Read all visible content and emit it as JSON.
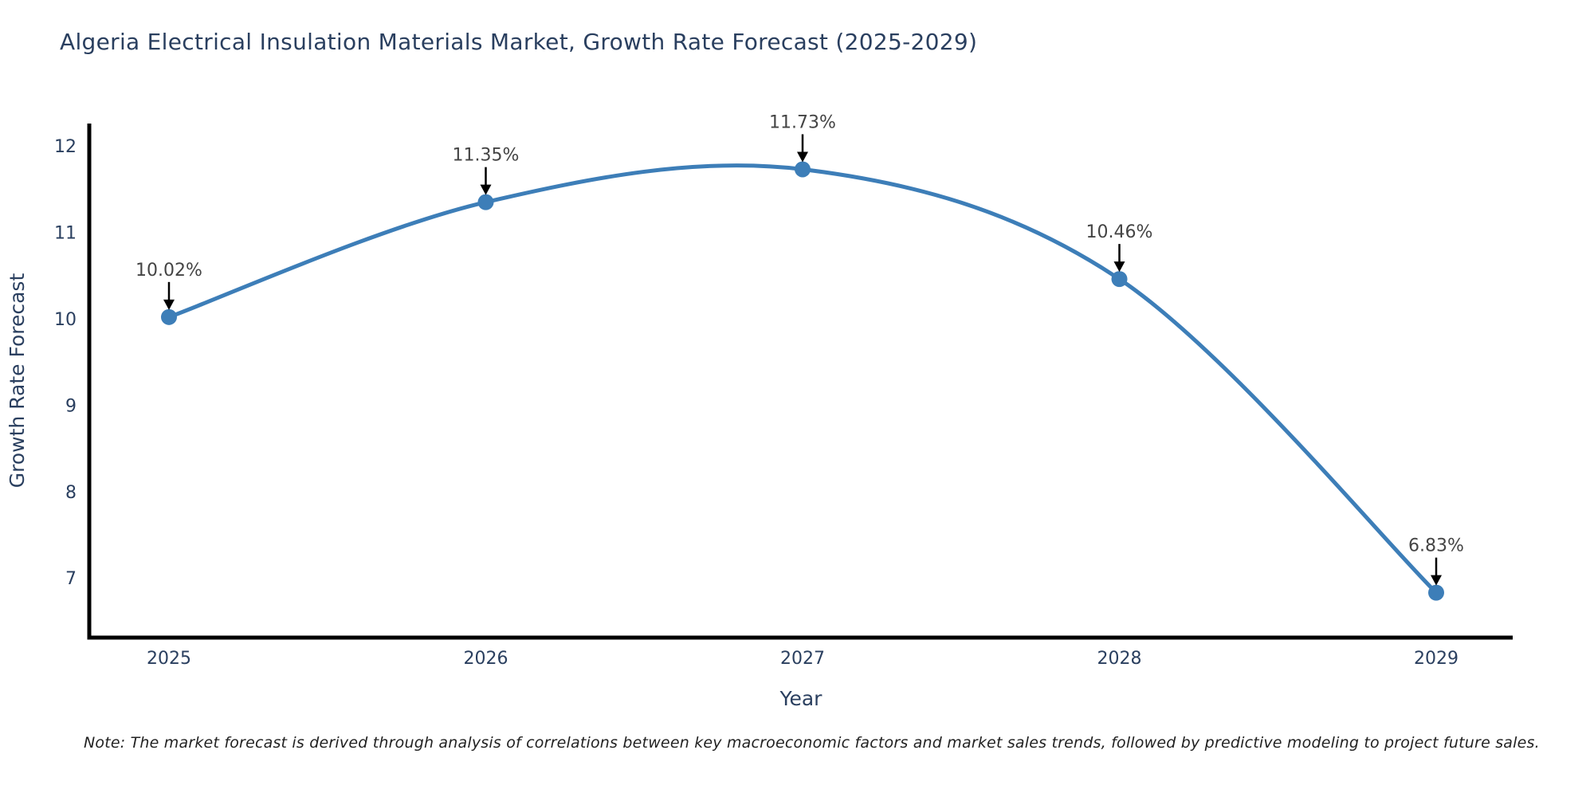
{
  "title": "Algeria Electrical Insulation Materials Market, Growth Rate Forecast (2025-2029)",
  "note": "Note: The market forecast is derived through analysis of correlations between key macroeconomic factors and market sales trends, followed by predictive modeling to project future sales.",
  "chart_data": {
    "type": "line",
    "line_shape": "spline",
    "x": [
      "2025",
      "2026",
      "2027",
      "2028",
      "2029"
    ],
    "values": [
      10.02,
      11.35,
      11.73,
      10.46,
      6.83
    ],
    "point_labels": [
      "10.02%",
      "11.35%",
      "11.73%",
      "10.46%",
      "6.83%"
    ],
    "xlabel": "Year",
    "ylabel": "Growth Rate Forecast",
    "yticks": [
      7,
      8,
      9,
      10,
      11,
      12
    ],
    "ylim": [
      6.31,
      12.26
    ],
    "grid": false,
    "legend": "none",
    "colors": {
      "line": "#3d7eb8",
      "marker": "#3d7eb8",
      "axis": "#000000",
      "axis_text": "#2a3f5f",
      "annotation_text": "#444444",
      "arrow": "#000000"
    }
  }
}
